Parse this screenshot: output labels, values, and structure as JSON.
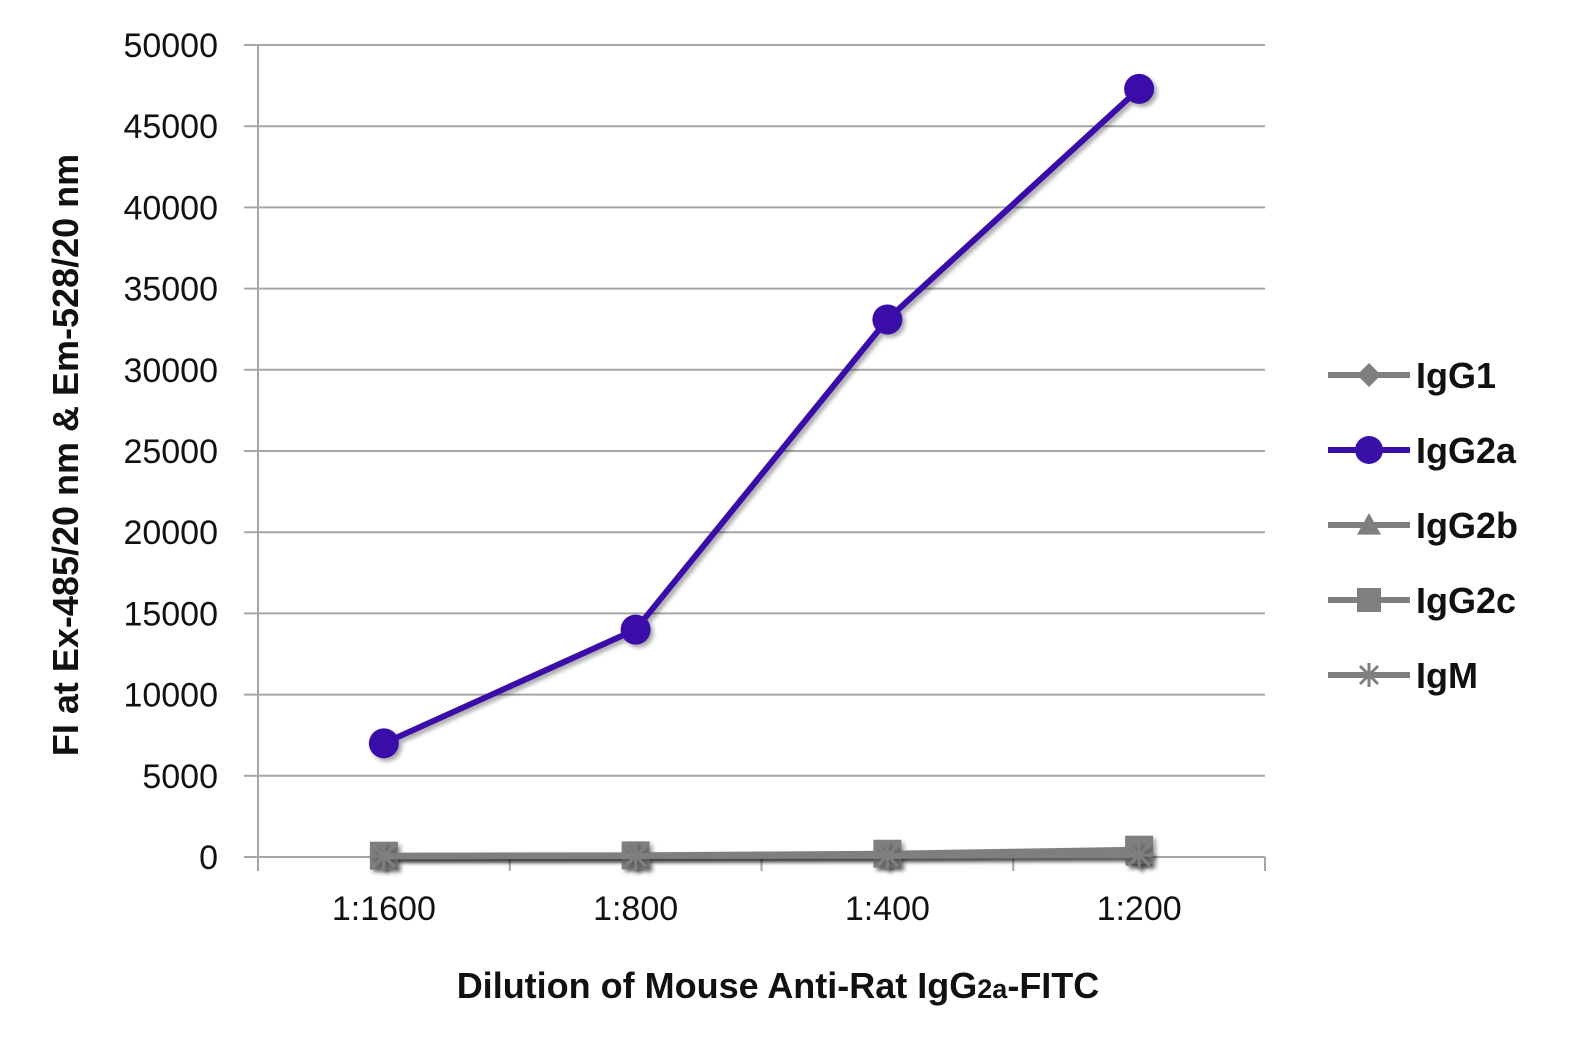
{
  "chart_data": {
    "type": "line",
    "title": "",
    "xlabel": "Dilution of Mouse Anti-Rat IgG2a-FITC",
    "xlabel_parts": {
      "prefix": "Dilution of Mouse Anti-Rat IgG",
      "sub": "2a",
      "suffix": "-FITC"
    },
    "ylabel": "FI at Ex-485/20 nm & Em-528/20 nm",
    "categories": [
      "1:1600",
      "1:800",
      "1:400",
      "1:200"
    ],
    "ylim": [
      0,
      50000
    ],
    "yticks": [
      0,
      5000,
      10000,
      15000,
      20000,
      25000,
      30000,
      35000,
      40000,
      45000,
      50000
    ],
    "grid": true,
    "legend_position": "right",
    "series": [
      {
        "name": "IgG1",
        "values": [
          60,
          70,
          90,
          140
        ],
        "color": "#7f7f7f",
        "marker": "diamond"
      },
      {
        "name": "IgG2a",
        "values": [
          7000,
          14000,
          33100,
          47300
        ],
        "color": "#3a0fa8",
        "marker": "circle"
      },
      {
        "name": "IgG2b",
        "values": [
          60,
          70,
          100,
          160
        ],
        "color": "#7f7f7f",
        "marker": "triangle"
      },
      {
        "name": "IgG2c",
        "values": [
          80,
          100,
          200,
          450
        ],
        "color": "#7f7f7f",
        "marker": "square"
      },
      {
        "name": "IgM",
        "values": [
          50,
          60,
          80,
          120
        ],
        "color": "#7f7f7f",
        "marker": "asterisk"
      }
    ]
  }
}
